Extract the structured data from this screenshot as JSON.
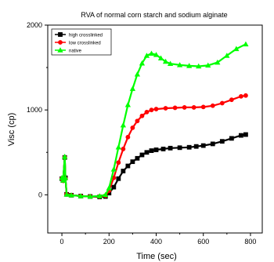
{
  "chart_data": {
    "type": "line",
    "title": "RVA of normal corn starch and sodium alginate",
    "xlabel": "Time (sec)",
    "ylabel": "Visc (cp)",
    "xlim": [
      -60,
      850
    ],
    "ylim": [
      -450,
      2000
    ],
    "x_ticks": [
      0,
      200,
      400,
      600,
      800
    ],
    "y_ticks": [
      0,
      1000,
      2000
    ],
    "grid": false,
    "legend_position": "top-left",
    "series": [
      {
        "name": "high crosslinked",
        "color": "#000000",
        "marker": "square",
        "points": [
          [
            0,
            190
          ],
          [
            5,
            170
          ],
          [
            12,
            440
          ],
          [
            15,
            200
          ],
          [
            20,
            5
          ],
          [
            40,
            -5
          ],
          [
            80,
            -15
          ],
          [
            120,
            -20
          ],
          [
            160,
            -25
          ],
          [
            185,
            -20
          ],
          [
            200,
            20
          ],
          [
            220,
            90
          ],
          [
            240,
            190
          ],
          [
            260,
            280
          ],
          [
            280,
            340
          ],
          [
            300,
            390
          ],
          [
            320,
            430
          ],
          [
            340,
            470
          ],
          [
            360,
            500
          ],
          [
            380,
            520
          ],
          [
            400,
            530
          ],
          [
            430,
            540
          ],
          [
            460,
            550
          ],
          [
            500,
            555
          ],
          [
            540,
            560
          ],
          [
            570,
            570
          ],
          [
            600,
            580
          ],
          [
            640,
            600
          ],
          [
            680,
            630
          ],
          [
            720,
            665
          ],
          [
            760,
            700
          ],
          [
            780,
            710
          ]
        ]
      },
      {
        "name": "low crosslinked",
        "color": "#ff0000",
        "marker": "circle",
        "points": [
          [
            0,
            190
          ],
          [
            5,
            165
          ],
          [
            12,
            440
          ],
          [
            15,
            190
          ],
          [
            20,
            5
          ],
          [
            40,
            -5
          ],
          [
            80,
            -15
          ],
          [
            120,
            -20
          ],
          [
            160,
            -20
          ],
          [
            185,
            -10
          ],
          [
            200,
            50
          ],
          [
            220,
            200
          ],
          [
            240,
            380
          ],
          [
            260,
            540
          ],
          [
            280,
            680
          ],
          [
            300,
            790
          ],
          [
            320,
            870
          ],
          [
            340,
            930
          ],
          [
            360,
            975
          ],
          [
            380,
            1000
          ],
          [
            400,
            1010
          ],
          [
            440,
            1020
          ],
          [
            480,
            1025
          ],
          [
            520,
            1030
          ],
          [
            560,
            1030
          ],
          [
            600,
            1035
          ],
          [
            640,
            1050
          ],
          [
            680,
            1080
          ],
          [
            720,
            1120
          ],
          [
            760,
            1160
          ],
          [
            780,
            1170
          ]
        ]
      },
      {
        "name": "native",
        "color": "#00ff00",
        "marker": "triangle",
        "points": [
          [
            0,
            200
          ],
          [
            5,
            170
          ],
          [
            12,
            450
          ],
          [
            15,
            200
          ],
          [
            20,
            5
          ],
          [
            40,
            -5
          ],
          [
            80,
            -15
          ],
          [
            120,
            -20
          ],
          [
            160,
            -15
          ],
          [
            185,
            0
          ],
          [
            200,
            80
          ],
          [
            220,
            300
          ],
          [
            240,
            560
          ],
          [
            260,
            820
          ],
          [
            280,
            1060
          ],
          [
            300,
            1250
          ],
          [
            320,
            1420
          ],
          [
            340,
            1550
          ],
          [
            360,
            1640
          ],
          [
            380,
            1665
          ],
          [
            400,
            1650
          ],
          [
            420,
            1610
          ],
          [
            440,
            1570
          ],
          [
            460,
            1545
          ],
          [
            500,
            1530
          ],
          [
            540,
            1520
          ],
          [
            580,
            1515
          ],
          [
            620,
            1525
          ],
          [
            660,
            1560
          ],
          [
            700,
            1640
          ],
          [
            740,
            1720
          ],
          [
            780,
            1775
          ]
        ]
      }
    ]
  }
}
